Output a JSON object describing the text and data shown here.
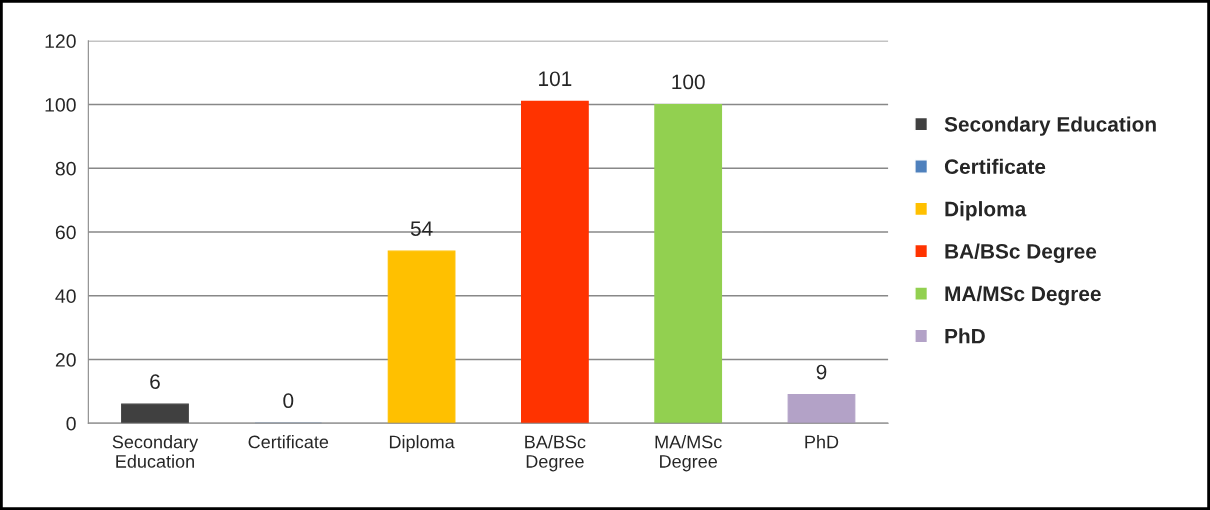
{
  "chart_data": {
    "type": "bar",
    "categories": [
      "Secondary Education",
      "Certificate",
      "Diploma",
      "BA/BSc Degree",
      "MA/MSc Degree",
      "PhD"
    ],
    "series": [
      {
        "name": "Secondary Education",
        "color": "#404040",
        "values": [
          6,
          null,
          null,
          null,
          null,
          null
        ]
      },
      {
        "name": "Certificate",
        "color": "#4f81bd",
        "values": [
          null,
          0,
          null,
          null,
          null,
          null
        ]
      },
      {
        "name": "Diploma",
        "color": "#ffc000",
        "values": [
          null,
          null,
          54,
          null,
          null,
          null
        ]
      },
      {
        "name": "BA/BSc Degree",
        "color": "#ff3300",
        "values": [
          null,
          null,
          null,
          101,
          null,
          null
        ]
      },
      {
        "name": "MA/MSc Degree",
        "color": "#92d050",
        "values": [
          null,
          null,
          null,
          null,
          100,
          null
        ]
      },
      {
        "name": "PhD",
        "color": "#b3a2c7",
        "values": [
          null,
          null,
          null,
          null,
          null,
          9
        ]
      }
    ],
    "ylim": [
      0,
      120
    ],
    "yticks": [
      0,
      20,
      40,
      60,
      80,
      100,
      120
    ],
    "grid": "y",
    "legend": "right",
    "data_labels": true
  }
}
